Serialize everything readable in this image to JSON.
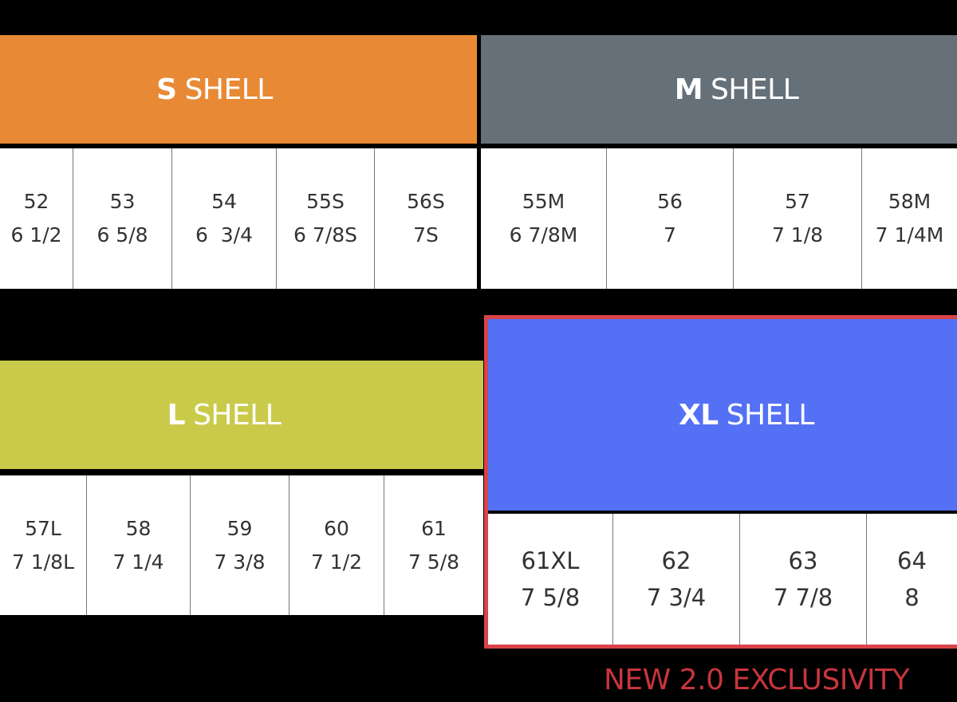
{
  "colors": {
    "s": "#E88A35",
    "m": "#667078",
    "l": "#CACA4A",
    "xl": "#5470F5",
    "accent": "#D8434A"
  },
  "shells": [
    {
      "id": "s",
      "bold": "S",
      "label": "SHELL",
      "cells": [
        {
          "cm": "52",
          "hat": "6 1/2"
        },
        {
          "cm": "53",
          "hat": "6 5/8"
        },
        {
          "cm": "54",
          "hat": "6  3/4"
        },
        {
          "cm": "55S",
          "hat": "6 7/8S"
        },
        {
          "cm": "56S",
          "hat": "7S"
        }
      ]
    },
    {
      "id": "m",
      "bold": "M",
      "label": "SHELL",
      "cells": [
        {
          "cm": "55M",
          "hat": "6 7/8M"
        },
        {
          "cm": "56",
          "hat": "7"
        },
        {
          "cm": "57",
          "hat": "7 1/8"
        },
        {
          "cm": "58M",
          "hat": "7 1/4M"
        }
      ]
    },
    {
      "id": "l",
      "bold": "L",
      "label": "SHELL",
      "cells": [
        {
          "cm": "57L",
          "hat": "7 1/8L"
        },
        {
          "cm": "58",
          "hat": "7 1/4"
        },
        {
          "cm": "59",
          "hat": "7 3/8"
        },
        {
          "cm": "60",
          "hat": "7 1/2"
        },
        {
          "cm": "61",
          "hat": "7 5/8"
        }
      ]
    },
    {
      "id": "xl",
      "bold": "XL",
      "label": "SHELL",
      "cells": [
        {
          "cm": "61XL",
          "hat": "7 5/8"
        },
        {
          "cm": "62",
          "hat": "7 3/4"
        },
        {
          "cm": "63",
          "hat": "7 7/8"
        },
        {
          "cm": "64",
          "hat": "8"
        }
      ]
    }
  ],
  "note": "NEW 2.0 EXCLUSIVITY"
}
